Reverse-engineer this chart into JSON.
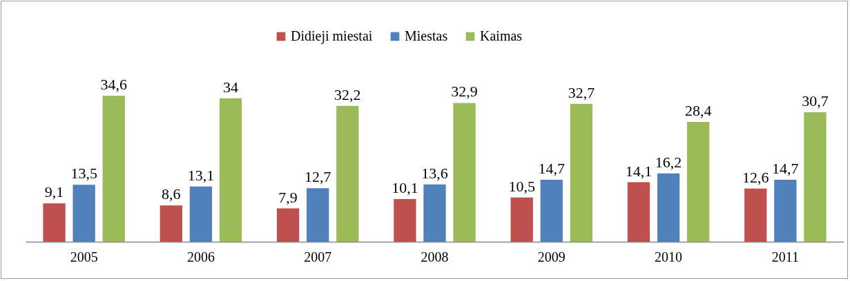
{
  "chart_data": {
    "type": "bar",
    "categories": [
      "2005",
      "2006",
      "2007",
      "2008",
      "2009",
      "2010",
      "2011"
    ],
    "series": [
      {
        "name": "Didieji miestai",
        "color": "#c0504d",
        "values": [
          9.1,
          8.6,
          7.9,
          10.1,
          10.5,
          14.1,
          12.6
        ],
        "value_labels": [
          "9,1",
          "8,6",
          "7,9",
          "10,1",
          "10,5",
          "14,1",
          "12,6"
        ]
      },
      {
        "name": "Miestas",
        "color": "#4f81bd",
        "values": [
          13.5,
          13.1,
          12.7,
          13.6,
          14.7,
          16.2,
          14.7
        ],
        "value_labels": [
          "13,5",
          "13,1",
          "12,7",
          "13,6",
          "14,7",
          "16,2",
          "14,7"
        ]
      },
      {
        "name": "Kaimas",
        "color": "#9bbb59",
        "values": [
          34.6,
          34,
          32.2,
          32.9,
          32.7,
          28.4,
          30.7
        ],
        "value_labels": [
          "34,6",
          "34",
          "32,2",
          "32,9",
          "32,7",
          "28,4",
          "30,7"
        ]
      }
    ],
    "legend": "top"
  }
}
